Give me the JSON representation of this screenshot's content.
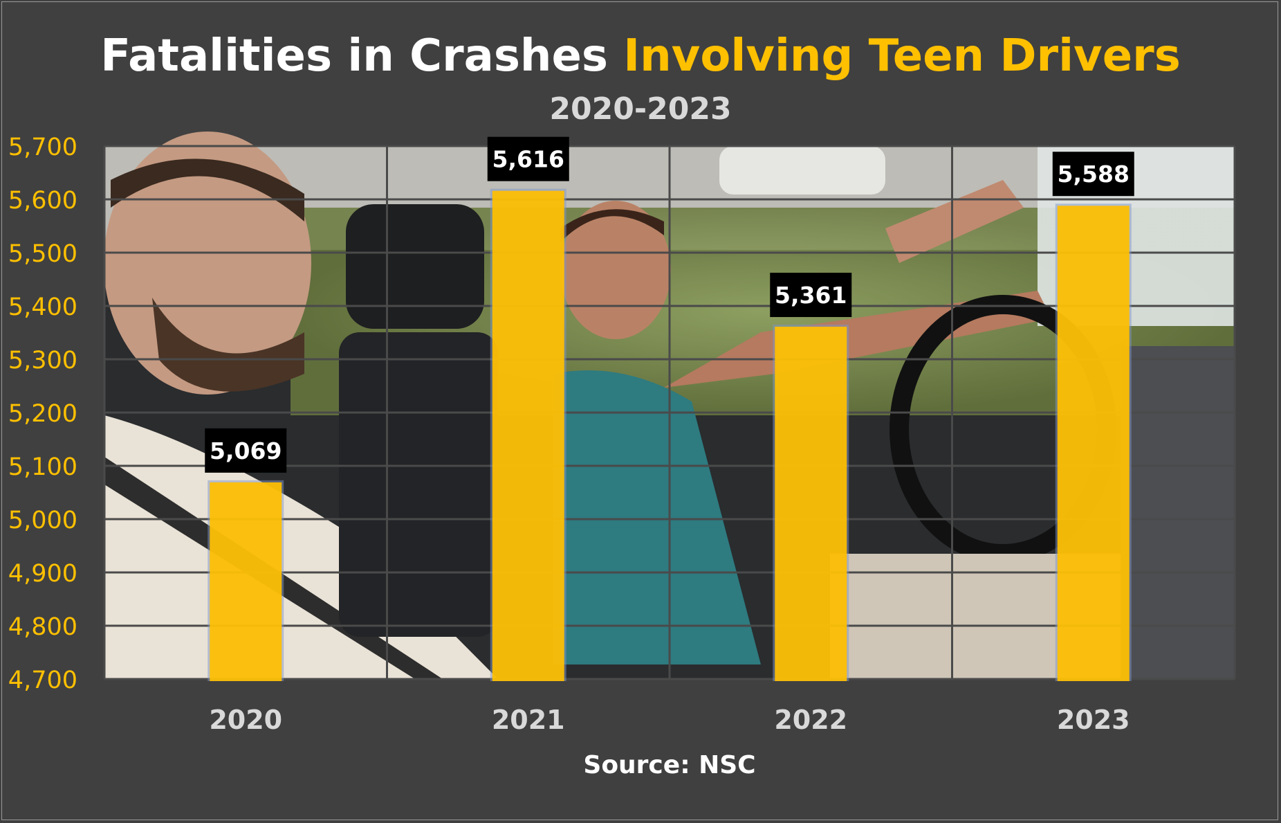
{
  "title_part1": "Fatalities in Crashes ",
  "title_part2": "Involving Teen Drivers",
  "subtitle": "2020-2023",
  "source": "Source: NSC",
  "colors": {
    "background": "#404040",
    "bar": "#ffc000",
    "axis_tick_text": "#ffc000",
    "category_text": "#d9d9d9",
    "grid": "#4a4a4a",
    "label_box": "#000000"
  },
  "chart_data": {
    "type": "bar",
    "title": "Fatalities in Crashes Involving Teen Drivers",
    "subtitle": "2020-2023",
    "categories": [
      "2020",
      "2021",
      "2022",
      "2023"
    ],
    "values": [
      5069,
      5616,
      5361,
      5588
    ],
    "data_labels": [
      "5,069",
      "5,616",
      "5,361",
      "5,588"
    ],
    "ylim": [
      4700,
      5700
    ],
    "yticks": [
      "4,700",
      "4,800",
      "4,900",
      "5,000",
      "5,100",
      "5,200",
      "5,300",
      "5,400",
      "5,500",
      "5,600",
      "5,700"
    ],
    "ytick_values": [
      4700,
      4800,
      4900,
      5000,
      5100,
      5200,
      5300,
      5400,
      5500,
      5600,
      5700
    ],
    "grid": true,
    "background_image": "photo of teen driver with adult passenger in car"
  }
}
